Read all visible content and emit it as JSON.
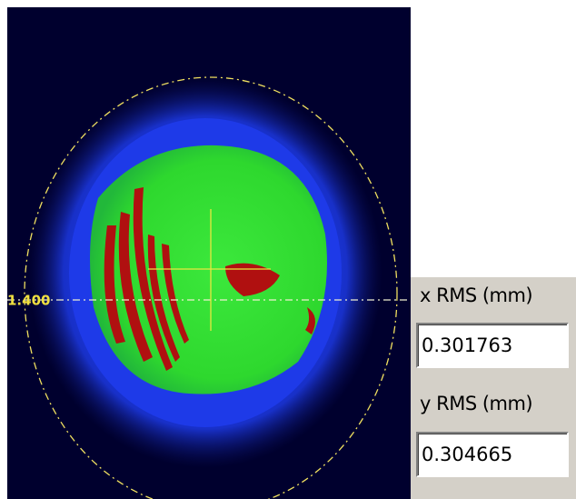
{
  "profile_view": {
    "marker_label": "1.400"
  },
  "rms_panel": {
    "x_label": "x RMS (mm)",
    "x_value": "0.301763",
    "y_label": "y RMS (mm)",
    "y_value": "0.304665"
  }
}
